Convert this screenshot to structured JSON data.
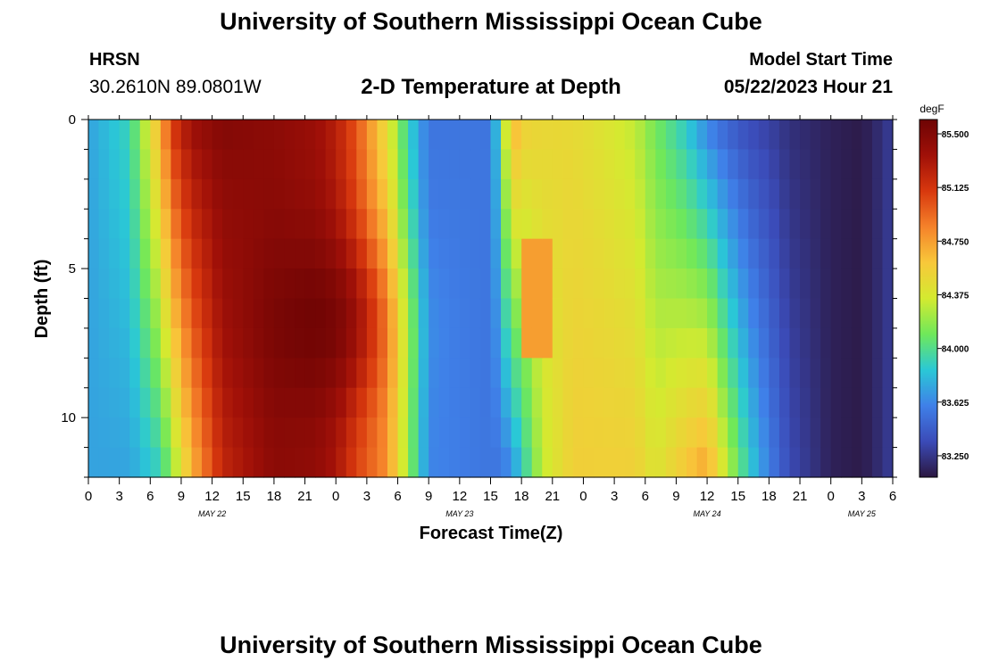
{
  "header": {
    "title": "University of Southern Mississippi Ocean Cube",
    "station": "HRSN",
    "coordinates": "30.2610N  89.0801W",
    "subtitle": "2-D Temperature at Depth",
    "model_start_label": "Model Start Time",
    "model_start_value": "05/22/2023 Hour 21"
  },
  "footer": {
    "title": "University of Southern Mississippi Ocean Cube"
  },
  "chart_data": {
    "type": "heatmap",
    "title": "2-D Temperature at Depth",
    "xlabel": "Forecast Time(Z)",
    "ylabel": "Depth (ft)",
    "x_range_hours": [
      0,
      78
    ],
    "y_range_ft": [
      0,
      12
    ],
    "y_ticks": [
      0,
      5,
      10
    ],
    "x_tick_labels": [
      "0",
      "3",
      "6",
      "9",
      "12",
      "15",
      "18",
      "21",
      "0",
      "3",
      "6",
      "9",
      "12",
      "15",
      "18",
      "21",
      "0",
      "3",
      "6",
      "9",
      "12",
      "15",
      "18",
      "21",
      "0",
      "3",
      "6"
    ],
    "date_labels": [
      {
        "label": "MAY 22",
        "hour": 12
      },
      {
        "label": "MAY 23",
        "hour": 36
      },
      {
        "label": "MAY 24",
        "hour": 60
      },
      {
        "label": "MAY 25",
        "hour": 75
      }
    ],
    "colorbar": {
      "unit": "degF",
      "min": 83.1,
      "max": 85.6,
      "ticks": [
        "85.500",
        "85.125",
        "84.750",
        "84.375",
        "84.000",
        "83.625",
        "83.250"
      ],
      "colors": [
        "#2b1740",
        "#3b4bb8",
        "#3f80e8",
        "#2ac8d6",
        "#6fe85a",
        "#d4ea30",
        "#f8c83a",
        "#f5822a",
        "#d8380e",
        "#a01008",
        "#6e0404"
      ]
    },
    "temperature_profile_keyframes": [
      {
        "hour": 0,
        "surface": 83.72,
        "bottom": 83.72
      },
      {
        "hour": 4,
        "surface": 83.92,
        "bottom": 83.72
      },
      {
        "hour": 7,
        "surface": 84.7,
        "bottom": 83.9
      },
      {
        "hour": 8,
        "surface": 85.1,
        "bottom": 84.15
      },
      {
        "hour": 10,
        "surface": 85.38,
        "bottom": 84.65
      },
      {
        "hour": 13,
        "surface": 85.5,
        "bottom": 85.2
      },
      {
        "hour": 18,
        "surface": 85.45,
        "bottom": 85.45
      },
      {
        "hour": 22,
        "surface": 85.38,
        "bottom": 85.42
      },
      {
        "hour": 24,
        "surface": 85.25,
        "bottom": 85.3
      },
      {
        "hour": 26,
        "surface": 85.0,
        "bottom": 85.05
      },
      {
        "hour": 29,
        "surface": 84.45,
        "bottom": 84.8
      },
      {
        "hour": 31,
        "surface": 83.9,
        "bottom": 84.2
      },
      {
        "hour": 33,
        "surface": 83.55,
        "bottom": 83.62
      },
      {
        "hour": 39,
        "surface": 83.55,
        "bottom": 83.55
      },
      {
        "hour": 40,
        "surface": 84.0,
        "bottom": 83.55
      },
      {
        "hour": 41,
        "surface": 84.75,
        "bottom": 83.62
      },
      {
        "hour": 42,
        "surface": 84.55,
        "bottom": 83.85
      },
      {
        "hour": 44,
        "surface": 84.5,
        "bottom": 84.3
      },
      {
        "hour": 47,
        "surface": 84.48,
        "bottom": 84.55
      },
      {
        "hour": 50,
        "surface": 84.4,
        "bottom": 84.55
      },
      {
        "hour": 53,
        "surface": 84.3,
        "bottom": 84.55
      },
      {
        "hour": 55,
        "surface": 84.1,
        "bottom": 84.4
      },
      {
        "hour": 58,
        "surface": 83.85,
        "bottom": 84.62
      },
      {
        "hour": 60,
        "surface": 83.6,
        "bottom": 84.75
      },
      {
        "hour": 62,
        "surface": 83.45,
        "bottom": 84.3
      },
      {
        "hour": 64,
        "surface": 83.35,
        "bottom": 83.9
      },
      {
        "hour": 66,
        "surface": 83.3,
        "bottom": 83.6
      },
      {
        "hour": 68,
        "surface": 83.22,
        "bottom": 83.35
      },
      {
        "hour": 72,
        "surface": 83.15,
        "bottom": 83.15
      },
      {
        "hour": 75,
        "surface": 83.12,
        "bottom": 83.12
      },
      {
        "hour": 77,
        "surface": 83.22,
        "bottom": 83.22
      },
      {
        "hour": 78,
        "surface": 83.3,
        "bottom": 83.3
      }
    ],
    "warm_core": {
      "hour": 22,
      "depth_ft": 6.8,
      "value": 85.6
    },
    "secondary_warm_patch": {
      "hour_start": 42,
      "hour_end": 45,
      "depth_start_ft": 4.5,
      "depth_end_ft": 7.5,
      "value": 84.75
    }
  }
}
